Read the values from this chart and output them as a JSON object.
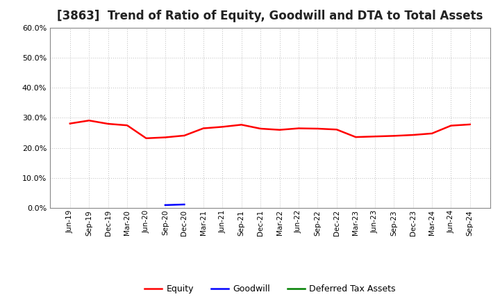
{
  "title": "[3863]  Trend of Ratio of Equity, Goodwill and DTA to Total Assets",
  "x_labels": [
    "Jun-19",
    "Sep-19",
    "Dec-19",
    "Mar-20",
    "Jun-20",
    "Sep-20",
    "Dec-20",
    "Mar-21",
    "Jun-21",
    "Sep-21",
    "Dec-21",
    "Mar-22",
    "Jun-22",
    "Sep-22",
    "Dec-22",
    "Mar-23",
    "Jun-23",
    "Sep-23",
    "Dec-23",
    "Mar-24",
    "Jun-24",
    "Sep-24"
  ],
  "equity": [
    0.281,
    0.291,
    0.28,
    0.275,
    0.232,
    0.235,
    0.241,
    0.265,
    0.27,
    0.277,
    0.264,
    0.26,
    0.265,
    0.264,
    0.261,
    0.236,
    0.238,
    0.24,
    0.243,
    0.248,
    0.274,
    0.278
  ],
  "goodwill": [
    null,
    null,
    null,
    null,
    null,
    0.01,
    0.012,
    null,
    null,
    null,
    null,
    null,
    null,
    null,
    null,
    null,
    null,
    null,
    null,
    null,
    null,
    null
  ],
  "dta": [
    null,
    null,
    null,
    null,
    null,
    null,
    null,
    null,
    null,
    null,
    null,
    null,
    null,
    null,
    null,
    null,
    null,
    null,
    null,
    null,
    null,
    null
  ],
  "equity_color": "#FF0000",
  "goodwill_color": "#0000FF",
  "dta_color": "#008000",
  "ylim": [
    0.0,
    0.6
  ],
  "yticks": [
    0.0,
    0.1,
    0.2,
    0.3,
    0.4,
    0.5,
    0.6
  ],
  "background_color": "#FFFFFF",
  "grid_color": "#BBBBBB",
  "title_fontsize": 12,
  "legend_labels": [
    "Equity",
    "Goodwill",
    "Deferred Tax Assets"
  ]
}
